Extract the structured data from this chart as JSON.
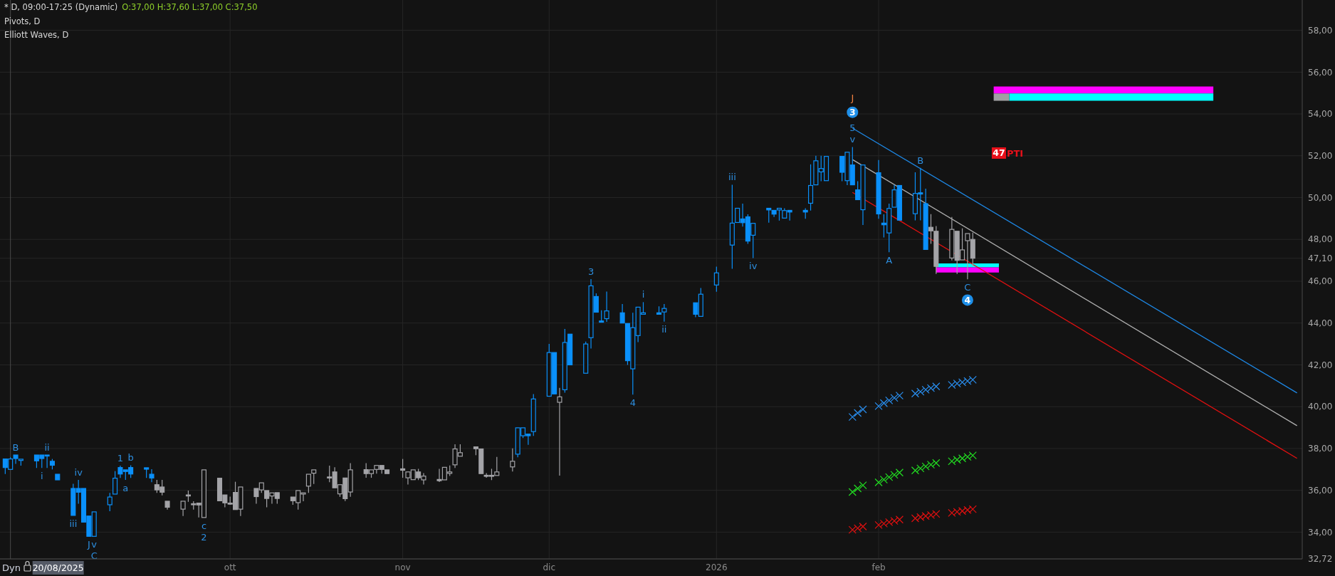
{
  "chart_data": {
    "type": "candlestick",
    "title": "* D, 09:00-17:25 (Dynamic)",
    "subtitle": "O:37,00 H:37,60 L:37,00 C:37,50",
    "annotations": [
      "Pivots, D",
      "Elliott Waves, D",
      "Dyn",
      {
        "text": "B",
        "x": "2025-08-21",
        "y": 37.69
      },
      {
        "text": "ii",
        "x": "2025-08-27",
        "y": 37.69
      },
      {
        "text": "i",
        "x": "2025-08-26",
        "y": 37.07
      },
      {
        "text": "iv",
        "x": "2025-09-02",
        "y": 36.5
      },
      {
        "text": "iii",
        "x": "2025-09-01",
        "y": 34.8
      },
      {
        "text": "J",
        "x": "2025-09-04",
        "y": 33.8
      },
      {
        "text": "v",
        "x": "2025-09-05",
        "y": 33.8
      },
      {
        "text": "C",
        "x": "2025-09-05",
        "y": 33.8
      },
      {
        "text": "1",
        "x": "2025-09-10",
        "y": 37.18
      },
      {
        "text": "b",
        "x": "2025-09-12",
        "y": 37.2
      },
      {
        "text": "a",
        "x": "2025-09-11",
        "y": 36.5
      },
      {
        "text": "c",
        "x": "2025-09-26",
        "y": 34.7
      },
      {
        "text": "2",
        "x": "2025-09-26",
        "y": 34.7
      },
      {
        "text": "3",
        "x": "2025-12-09",
        "y": 46.1
      },
      {
        "text": "4",
        "x": "2025-12-17",
        "y": 40.58
      },
      {
        "text": "i",
        "x": "2025-12-19",
        "y": 45.0
      },
      {
        "text": "ii",
        "x": "2025-12-23",
        "y": 44.07
      },
      {
        "text": "iii",
        "x": "2026-01-05",
        "y": 50.61
      },
      {
        "text": "iv",
        "x": "2026-01-09",
        "y": 47.11
      },
      {
        "text": "v",
        "x": "2026-01-28",
        "y": 52.42
      },
      {
        "text": "5",
        "x": "2026-01-28",
        "y": 52.42
      },
      {
        "text": "3",
        "x": "2026-01-28",
        "y": 54.08
      },
      {
        "text": "J",
        "x": "2026-01-28",
        "y": 54.08
      },
      {
        "text": "A",
        "x": "2026-02-04",
        "y": 47.39
      },
      {
        "text": "B",
        "x": "2026-02-10",
        "y": 51.42
      },
      {
        "text": "C",
        "x": "2026-02-19",
        "y": 46.09
      },
      {
        "text": "4",
        "x": "2026-02-19",
        "y": 45.1
      },
      {
        "text": "47",
        "x": "2026-02-25",
        "y": 52.13
      }
    ],
    "xlim": [
      "2025-08-18",
      "2026-04-24"
    ],
    "xticks": [
      {
        "value": "2025-10-01",
        "label": "ott"
      },
      {
        "value": "2025-11-03",
        "label": "nov"
      },
      {
        "value": "2025-12-01",
        "label": "dic"
      },
      {
        "value": "2026-01-02",
        "label": "2026"
      },
      {
        "value": "2026-02-02",
        "label": "feb"
      }
    ],
    "ylim": [
      32.72,
      59.45
    ],
    "yticks": [
      {
        "value": 32.72,
        "label": "32,72"
      },
      {
        "value": 34,
        "label": "34,00"
      },
      {
        "value": 36,
        "label": "36,00"
      },
      {
        "value": 38,
        "label": "38,00"
      },
      {
        "value": 40,
        "label": "40,00"
      },
      {
        "value": 42,
        "label": "42,00"
      },
      {
        "value": 44,
        "label": "44,00"
      },
      {
        "value": 46,
        "label": "46,00"
      },
      {
        "value": 47.1,
        "label": "47,10"
      },
      {
        "value": 48,
        "label": "48,00"
      },
      {
        "value": 50,
        "label": "50,00"
      },
      {
        "value": 52,
        "label": "52,00"
      },
      {
        "value": 54,
        "label": "54,00"
      },
      {
        "value": 56,
        "label": "56,00"
      },
      {
        "value": 58,
        "label": "58,00"
      }
    ],
    "grid": true,
    "line_style": "solid",
    "ref_lines": [
      {
        "axis": "x",
        "value": "2025-08-20",
        "label": "20/08/2025",
        "color": "#4a4a4a"
      }
    ],
    "series": [
      {
        "type": "line",
        "color": "#ff00ff",
        "x": [
          "2026-02-24",
          "2026-04-07"
        ],
        "values": [
          null,
          null
        ],
        "upper": [
          55.31,
          55.31
        ],
        "lower": [
          54.98,
          54.98
        ]
      },
      {
        "type": "line",
        "color": "#a0a0a4",
        "x": [
          "2026-02-24",
          "2026-02-27"
        ],
        "values": [
          null,
          null
        ],
        "upper": [
          54.98,
          54.98
        ],
        "lower": [
          54.63,
          54.63
        ]
      },
      {
        "type": "line",
        "color": "#00ffff",
        "x": [
          "2026-02-27",
          "2026-04-07"
        ],
        "values": [
          null,
          null
        ],
        "upper": [
          54.98,
          54.98
        ],
        "lower": [
          54.63,
          54.63
        ]
      },
      {
        "type": "line",
        "color": "#00ffff",
        "x": [
          "2026-02-13",
          "2026-02-25"
        ],
        "values": [
          null,
          null
        ],
        "upper": [
          46.85,
          46.85
        ],
        "lower": [
          46.66,
          46.66
        ]
      },
      {
        "type": "line",
        "color": "#ff00ff",
        "x": [
          "2026-02-13",
          "2026-02-25"
        ],
        "values": [
          null,
          null
        ],
        "upper": [
          46.66,
          46.66
        ],
        "lower": [
          46.42,
          46.42
        ]
      },
      {
        "type": "line",
        "color": "#1e88e5",
        "x": [
          "2026-01-28",
          "2026-04-23"
        ],
        "values": [
          53.32,
          40.66
        ]
      },
      {
        "type": "line",
        "color": "#b0b0b0",
        "x": [
          "2026-01-28",
          "2026-04-23"
        ],
        "values": [
          51.82,
          39.09
        ]
      },
      {
        "type": "line",
        "color": "#e01010",
        "x": [
          "2026-01-28",
          "2026-04-23"
        ],
        "values": [
          50.25,
          37.53
        ]
      },
      {
        "type": "scatter",
        "marker": "cross",
        "color": "#2a8ff0",
        "x": [
          "2026-01-28",
          "2026-01-29",
          "2026-01-30",
          "2026-02-02",
          "2026-02-03",
          "2026-02-04",
          "2026-02-05",
          "2026-02-06",
          "2026-02-09",
          "2026-02-10",
          "2026-02-11",
          "2026-02-12",
          "2026-02-13",
          "2026-02-16",
          "2026-02-17",
          "2026-02-18",
          "2026-02-19",
          "2026-02-20"
        ],
        "values": [
          39.51,
          39.7,
          39.87,
          40.03,
          40.17,
          40.3,
          40.42,
          40.53,
          40.63,
          40.72,
          40.81,
          40.89,
          40.97,
          41.04,
          41.11,
          41.17,
          41.23,
          41.29
        ]
      },
      {
        "type": "scatter",
        "marker": "cross",
        "color": "#22dd22",
        "x": [
          "2026-01-28",
          "2026-01-29",
          "2026-01-30",
          "2026-02-02",
          "2026-02-03",
          "2026-02-04",
          "2026-02-05",
          "2026-02-06",
          "2026-02-09",
          "2026-02-10",
          "2026-02-11",
          "2026-02-12",
          "2026-02-13",
          "2026-02-16",
          "2026-02-17",
          "2026-02-18",
          "2026-02-19",
          "2026-02-20"
        ],
        "values": [
          35.92,
          36.09,
          36.24,
          36.38,
          36.51,
          36.63,
          36.74,
          36.85,
          36.95,
          37.05,
          37.14,
          37.23,
          37.31,
          37.39,
          37.46,
          37.53,
          37.6,
          37.67
        ]
      },
      {
        "type": "scatter",
        "marker": "cross",
        "color": "#e01010",
        "x": [
          "2026-01-28",
          "2026-01-29",
          "2026-01-30",
          "2026-02-02",
          "2026-02-03",
          "2026-02-04",
          "2026-02-05",
          "2026-02-06",
          "2026-02-09",
          "2026-02-10",
          "2026-02-11",
          "2026-02-12",
          "2026-02-13",
          "2026-02-16",
          "2026-02-17",
          "2026-02-18",
          "2026-02-19",
          "2026-02-20"
        ],
        "values": [
          34.11,
          34.19,
          34.27,
          34.34,
          34.41,
          34.48,
          34.54,
          34.6,
          34.66,
          34.72,
          34.77,
          34.82,
          34.87,
          34.92,
          34.97,
          35.01,
          35.06,
          35.1
        ]
      },
      {
        "color": "#0a90fa",
        "x": [
          "2025-08-19",
          "2025-08-20",
          "2025-08-21",
          "2025-08-22",
          "2025-08-25",
          "2025-08-26",
          "2025-08-27",
          "2025-08-28",
          "2025-08-29",
          "2025-09-01",
          "2025-09-02",
          "2025-09-03",
          "2025-09-04",
          "2025-09-05",
          "2025-09-08",
          "2025-09-09",
          "2025-09-10",
          "2025-09-11",
          "2025-09-12",
          "2025-09-15",
          "2025-09-16",
          "2025-11-25",
          "2025-11-26",
          "2025-11-27",
          "2025-11-28",
          "2025-12-01",
          "2025-12-02",
          "2025-12-04",
          "2025-12-05",
          "2025-12-08",
          "2025-12-09",
          "2025-12-10",
          "2025-12-11",
          "2025-12-12",
          "2025-12-15",
          "2025-12-16",
          "2025-12-17",
          "2025-12-18",
          "2025-12-19",
          "2025-12-22",
          "2025-12-23",
          "2025-12-29",
          "2025-12-30",
          "2026-01-02",
          "2026-01-05",
          "2026-01-06",
          "2026-01-07",
          "2026-01-08",
          "2026-01-09",
          "2026-01-12",
          "2026-01-13",
          "2026-01-14",
          "2026-01-15",
          "2026-01-16",
          "2026-01-19",
          "2026-01-20",
          "2026-01-21",
          "2026-01-22",
          "2026-01-23",
          "2026-01-26",
          "2026-01-27",
          "2026-01-28",
          "2026-01-29",
          "2026-01-30",
          "2026-02-02",
          "2026-02-03",
          "2026-02-04",
          "2026-02-05",
          "2026-02-06",
          "2026-02-09",
          "2026-02-10",
          "2026-02-11"
        ],
        "ohlc": [
          [
            37.5,
            37.5,
            36.78,
            37.09
          ],
          [
            37.0,
            37.58,
            37.0,
            37.5
          ],
          [
            37.69,
            37.69,
            37.27,
            37.52
          ],
          [
            37.43,
            37.49,
            37.18,
            37.49
          ],
          [
            37.69,
            37.69,
            37.07,
            37.41
          ],
          [
            37.69,
            37.69,
            37.07,
            37.52
          ],
          [
            37.69,
            37.69,
            37.07,
            37.64
          ],
          [
            37.39,
            37.5,
            37.0,
            37.2
          ],
          [
            36.77,
            36.77,
            36.5,
            36.5
          ],
          [
            36.09,
            36.31,
            34.8,
            34.8
          ],
          [
            36.09,
            36.5,
            35.36,
            35.91
          ],
          [
            36.09,
            36.09,
            34.48,
            34.48
          ],
          [
            34.77,
            34.77,
            33.8,
            33.8
          ],
          [
            33.8,
            34.97,
            33.8,
            34.97
          ],
          [
            35.31,
            35.88,
            35.0,
            35.68
          ],
          [
            35.82,
            36.92,
            35.82,
            36.58
          ],
          [
            37.09,
            37.18,
            36.59,
            36.78
          ],
          [
            36.98,
            36.98,
            36.5,
            36.9
          ],
          [
            37.09,
            37.2,
            36.59,
            36.78
          ],
          [
            37.08,
            37.08,
            36.59,
            37.01
          ],
          [
            36.77,
            37.01,
            36.39,
            36.59
          ],
          [
            37.73,
            38.99,
            37.58,
            38.99
          ],
          [
            38.61,
            38.99,
            38.5,
            38.99
          ],
          [
            38.69,
            38.69,
            38.18,
            38.61
          ],
          [
            38.81,
            40.6,
            38.6,
            40.37
          ],
          [
            40.5,
            43.0,
            40.5,
            42.59
          ],
          [
            42.59,
            42.59,
            40.61,
            40.61
          ],
          [
            40.81,
            43.72,
            40.67,
            43.07
          ],
          [
            43.47,
            43.47,
            42.0,
            42.0
          ],
          [
            41.6,
            43.11,
            41.6,
            43.0
          ],
          [
            43.3,
            46.1,
            42.78,
            45.78
          ],
          [
            45.27,
            45.42,
            44.52,
            44.52
          ],
          [
            44.1,
            44.61,
            44.04,
            44.04
          ],
          [
            44.21,
            45.51,
            44.06,
            44.58
          ],
          [
            44.49,
            44.91,
            44.0,
            44.0
          ],
          [
            43.98,
            43.98,
            42.0,
            42.2
          ],
          [
            41.81,
            44.49,
            40.58,
            43.78
          ],
          [
            43.4,
            44.76,
            43.09,
            44.76
          ],
          [
            44.42,
            45.0,
            44.42,
            44.49
          ],
          [
            44.49,
            44.8,
            44.42,
            44.42
          ],
          [
            44.53,
            44.91,
            44.07,
            44.7
          ],
          [
            44.97,
            44.97,
            44.28,
            44.42
          ],
          [
            44.32,
            45.68,
            44.32,
            45.38
          ],
          [
            45.82,
            46.7,
            45.5,
            46.4
          ],
          [
            47.73,
            50.61,
            46.6,
            48.78
          ],
          [
            48.81,
            49.49,
            48.81,
            49.49
          ],
          [
            48.98,
            49.71,
            48.61,
            48.8
          ],
          [
            49.08,
            49.2,
            47.79,
            47.92
          ],
          [
            48.2,
            48.77,
            47.11,
            48.77
          ],
          [
            49.49,
            49.49,
            48.8,
            49.41
          ],
          [
            49.39,
            49.39,
            49.07,
            49.21
          ],
          [
            49.41,
            49.49,
            48.9,
            49.49
          ],
          [
            49.02,
            49.49,
            49.02,
            49.38
          ],
          [
            49.39,
            49.39,
            48.9,
            49.31
          ],
          [
            49.39,
            49.49,
            48.99,
            49.31
          ],
          [
            49.73,
            51.59,
            49.38,
            50.58
          ],
          [
            50.61,
            52.0,
            50.61,
            51.76
          ],
          [
            51.23,
            52.0,
            50.78,
            51.39
          ],
          [
            50.81,
            51.97,
            50.81,
            51.97
          ],
          [
            51.97,
            51.97,
            50.78,
            51.21
          ],
          [
            50.81,
            52.17,
            50.6,
            52.17
          ],
          [
            51.56,
            52.42,
            50.61,
            50.61
          ],
          [
            50.37,
            50.78,
            49.9,
            49.9
          ],
          [
            49.42,
            51.56,
            48.69,
            51.56
          ],
          [
            51.19,
            51.8,
            48.99,
            49.22
          ],
          [
            48.78,
            49.2,
            48.09,
            48.7
          ],
          [
            48.31,
            49.71,
            47.39,
            49.48
          ],
          [
            49.54,
            50.61,
            49.54,
            50.37
          ],
          [
            50.58,
            50.58,
            48.92,
            48.92
          ],
          [
            49.23,
            51.21,
            48.91,
            50.2
          ],
          [
            50.23,
            51.42,
            48.91,
            50.17
          ],
          [
            49.71,
            50.43,
            47.52,
            47.52
          ]
        ]
      },
      {
        "color": "#a4a4a8",
        "x": [
          "2025-09-17",
          "2025-09-18",
          "2025-09-19",
          "2025-09-22",
          "2025-09-23",
          "2025-09-24",
          "2025-09-25",
          "2025-09-26",
          "2025-09-29",
          "2025-09-30",
          "2025-10-01",
          "2025-10-02",
          "2025-10-03",
          "2025-10-06",
          "2025-10-07",
          "2025-10-08",
          "2025-10-09",
          "2025-10-10",
          "2025-10-13",
          "2025-10-14",
          "2025-10-15",
          "2025-10-16",
          "2025-10-17",
          "2025-10-20",
          "2025-10-21",
          "2025-10-22",
          "2025-10-23",
          "2025-10-24",
          "2025-10-27",
          "2025-10-28",
          "2025-10-29",
          "2025-10-30",
          "2025-10-31",
          "2025-11-03",
          "2025-11-04",
          "2025-11-05",
          "2025-11-06",
          "2025-11-07",
          "2025-11-10",
          "2025-11-11",
          "2025-11-12",
          "2025-11-13",
          "2025-11-14",
          "2025-11-17",
          "2025-11-18",
          "2025-11-19",
          "2025-11-20",
          "2025-11-21",
          "2025-11-24",
          "2025-12-03",
          "2026-02-12",
          "2026-02-13",
          "2026-02-16",
          "2026-02-17",
          "2026-02-18",
          "2026-02-19",
          "2026-02-20"
        ],
        "ohlc": [
          [
            36.27,
            36.5,
            35.88,
            36.02
          ],
          [
            36.16,
            36.5,
            35.76,
            35.91
          ],
          [
            35.48,
            35.48,
            35.08,
            35.19
          ],
          [
            35.1,
            35.48,
            34.77,
            35.48
          ],
          [
            35.78,
            35.99,
            35.45,
            35.74
          ],
          [
            35.36,
            35.48,
            35.08,
            35.33
          ],
          [
            35.39,
            35.39,
            34.7,
            35.3
          ],
          [
            34.7,
            36.98,
            34.7,
            36.98
          ],
          [
            36.58,
            36.58,
            35.5,
            35.5
          ],
          [
            35.78,
            35.78,
            35.19,
            35.4
          ],
          [
            35.39,
            35.7,
            35.31,
            35.34
          ],
          [
            35.9,
            36.41,
            35.08,
            35.08
          ],
          [
            35.1,
            36.16,
            34.77,
            36.16
          ],
          [
            36.09,
            36.09,
            35.36,
            35.7
          ],
          [
            36.02,
            36.36,
            35.88,
            36.36
          ],
          [
            35.99,
            35.99,
            35.19,
            35.61
          ],
          [
            35.73,
            35.88,
            35.36,
            35.88
          ],
          [
            35.89,
            35.89,
            35.36,
            35.61
          ],
          [
            35.68,
            35.68,
            35.31,
            35.5
          ],
          [
            35.41,
            35.99,
            35.08,
            35.99
          ],
          [
            35.82,
            35.88,
            35.48,
            35.88
          ],
          [
            36.2,
            36.77,
            35.88,
            36.77
          ],
          [
            36.82,
            36.98,
            36.3,
            36.98
          ],
          [
            36.64,
            37.18,
            36.39,
            36.61
          ],
          [
            36.88,
            37.1,
            36.12,
            36.12
          ],
          [
            35.83,
            36.27,
            35.69,
            36.27
          ],
          [
            36.59,
            36.59,
            35.49,
            35.6
          ],
          [
            35.92,
            37.3,
            35.69,
            36.98
          ],
          [
            36.99,
            37.3,
            36.6,
            36.8
          ],
          [
            36.8,
            36.98,
            36.6,
            36.98
          ],
          [
            37.0,
            37.19,
            36.8,
            37.19
          ],
          [
            37.19,
            37.19,
            36.8,
            37.0
          ],
          [
            36.98,
            36.98,
            36.8,
            36.8
          ],
          [
            37.03,
            37.5,
            36.6,
            36.96
          ],
          [
            36.6,
            36.88,
            36.28,
            36.88
          ],
          [
            36.51,
            36.98,
            36.51,
            36.98
          ],
          [
            36.88,
            37.03,
            36.49,
            36.6
          ],
          [
            36.5,
            36.82,
            36.28,
            36.68
          ],
          [
            36.52,
            37.03,
            36.4,
            36.46
          ],
          [
            36.5,
            37.1,
            36.5,
            37.1
          ],
          [
            36.81,
            37.19,
            36.69,
            36.88
          ],
          [
            37.22,
            38.2,
            37.07,
            37.98
          ],
          [
            37.63,
            38.2,
            37.63,
            37.8
          ],
          [
            38.08,
            38.08,
            37.68,
            37.99
          ],
          [
            37.98,
            37.98,
            36.8,
            36.8
          ],
          [
            36.72,
            36.82,
            36.6,
            36.67
          ],
          [
            36.72,
            37.03,
            36.49,
            36.67
          ],
          [
            36.71,
            37.6,
            36.71,
            36.88
          ],
          [
            37.12,
            38.01,
            36.9,
            37.39
          ],
          [
            40.21,
            40.9,
            36.7,
            40.47
          ],
          [
            48.58,
            49.21,
            47.79,
            48.41
          ],
          [
            48.39,
            48.64,
            46.35,
            46.71
          ],
          [
            47.11,
            49.07,
            47.0,
            48.48
          ],
          [
            48.39,
            48.39,
            46.35,
            47.0
          ],
          [
            47.02,
            48.53,
            47.02,
            47.5
          ],
          [
            47.94,
            48.28,
            46.09,
            48.28
          ],
          [
            48.0,
            48.32,
            46.71,
            47.1
          ]
        ]
      },
      {
        "type": "scatter",
        "marker": "circle",
        "color": "#1e8fe8",
        "x": [
          "2026-01-28",
          "2026-02-19"
        ],
        "values": [
          54.08,
          45.1
        ]
      },
      {
        "type": "scatter",
        "marker": "square",
        "name": "PTI",
        "color": "#e8101a",
        "x": [
          "2026-02-25"
        ],
        "values": [
          52.13
        ]
      }
    ]
  }
}
